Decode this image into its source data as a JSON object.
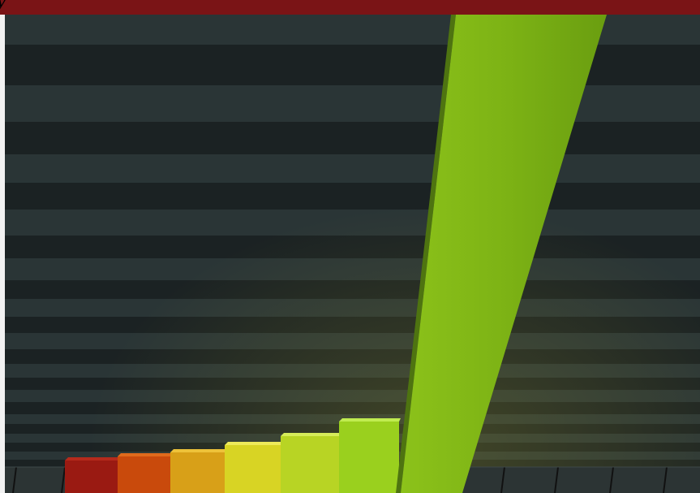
{
  "header": {
    "text": "y"
  }
}
